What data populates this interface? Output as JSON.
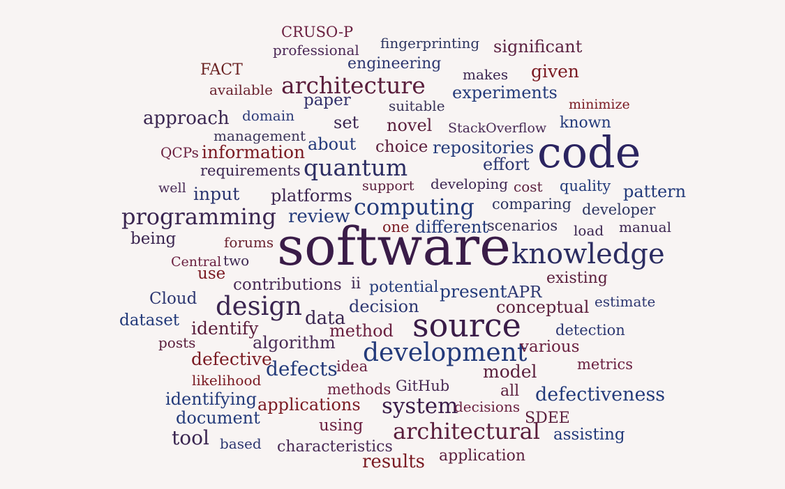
{
  "words": [
    {
      "text": "CRUSO-P",
      "color": "#6a2040"
    },
    {
      "text": "professional",
      "color": "#4b2755"
    },
    {
      "text": "fingerprinting",
      "color": "#2d3560"
    },
    {
      "text": "significant",
      "color": "#5a1f3f"
    },
    {
      "text": "FACT",
      "color": "#6a2222"
    },
    {
      "text": "engineering",
      "color": "#2c3670"
    },
    {
      "text": "makes",
      "color": "#3b2550"
    },
    {
      "text": "given",
      "color": "#7a1a22"
    },
    {
      "text": "available",
      "color": "#6b2330"
    },
    {
      "text": "architecture",
      "color": "#5a1e3c"
    },
    {
      "text": "experiments",
      "color": "#233a7a"
    },
    {
      "text": "paper",
      "color": "#31306a"
    },
    {
      "text": "suitable",
      "color": "#3a3358"
    },
    {
      "text": "minimize",
      "color": "#7a1a22"
    },
    {
      "text": "approach",
      "color": "#3a2550"
    },
    {
      "text": "domain",
      "color": "#2d3a78"
    },
    {
      "text": "set",
      "color": "#3a2550"
    },
    {
      "text": "novel",
      "color": "#5a1e3c"
    },
    {
      "text": "StackOverflow",
      "color": "#482a55"
    },
    {
      "text": "known",
      "color": "#233a7a"
    },
    {
      "text": "management",
      "color": "#3a3358"
    },
    {
      "text": "code",
      "color": "#2b2460"
    },
    {
      "text": "QCPs",
      "color": "#6a2040"
    },
    {
      "text": "information",
      "color": "#7a1a22"
    },
    {
      "text": "about",
      "color": "#233a7a"
    },
    {
      "text": "choice",
      "color": "#5a1e3c"
    },
    {
      "text": "repositories",
      "color": "#233a7a"
    },
    {
      "text": "effort",
      "color": "#2c3670"
    },
    {
      "text": "requirements",
      "color": "#3b2550"
    },
    {
      "text": "quantum",
      "color": "#2c2d62"
    },
    {
      "text": "well",
      "color": "#482a55"
    },
    {
      "text": "input",
      "color": "#2c3670"
    },
    {
      "text": "support",
      "color": "#5a1e3c"
    },
    {
      "text": "developing",
      "color": "#3b2550"
    },
    {
      "text": "cost",
      "color": "#5a1e3c"
    },
    {
      "text": "quality",
      "color": "#233a7a"
    },
    {
      "text": "pattern",
      "color": "#233a7a"
    },
    {
      "text": "platforms",
      "color": "#3b2550"
    },
    {
      "text": "computing",
      "color": "#233a7a"
    },
    {
      "text": "comparing",
      "color": "#2d3560"
    },
    {
      "text": "developer",
      "color": "#2d3560"
    },
    {
      "text": "programming",
      "color": "#3a2550"
    },
    {
      "text": "review",
      "color": "#233a7a"
    },
    {
      "text": "one",
      "color": "#7a1a22"
    },
    {
      "text": "different",
      "color": "#233a7a"
    },
    {
      "text": "scenarios",
      "color": "#3a3358"
    },
    {
      "text": "load",
      "color": "#3b2550"
    },
    {
      "text": "manual",
      "color": "#3b2550"
    },
    {
      "text": "being",
      "color": "#3b2550"
    },
    {
      "text": "forums",
      "color": "#6a2330"
    },
    {
      "text": "software",
      "color": "#3a1c48"
    },
    {
      "text": "knowledge",
      "color": "#2c2d62"
    },
    {
      "text": "Central",
      "color": "#6a2040"
    },
    {
      "text": "two",
      "color": "#3b2550"
    },
    {
      "text": "use",
      "color": "#7a1a22"
    },
    {
      "text": "existing",
      "color": "#5a1e3c"
    },
    {
      "text": "contributions",
      "color": "#482a55"
    },
    {
      "text": "ii",
      "color": "#3b2550"
    },
    {
      "text": "potential",
      "color": "#233a7a"
    },
    {
      "text": "present",
      "color": "#233a7a"
    },
    {
      "text": "APR",
      "color": "#2c3670"
    },
    {
      "text": "Cloud",
      "color": "#2c3670"
    },
    {
      "text": "design",
      "color": "#3b2550"
    },
    {
      "text": "decision",
      "color": "#2c3670"
    },
    {
      "text": "conceptual",
      "color": "#5a1e3c"
    },
    {
      "text": "estimate",
      "color": "#2c3670"
    },
    {
      "text": "dataset",
      "color": "#233a7a"
    },
    {
      "text": "identify",
      "color": "#5a1e3c"
    },
    {
      "text": "data",
      "color": "#3a2550"
    },
    {
      "text": "source",
      "color": "#3a1c48"
    },
    {
      "text": "method",
      "color": "#6a2040"
    },
    {
      "text": "detection",
      "color": "#2c3670"
    },
    {
      "text": "posts",
      "color": "#5a1e3c"
    },
    {
      "text": "algorithm",
      "color": "#482a55"
    },
    {
      "text": "development",
      "color": "#233a7a"
    },
    {
      "text": "various",
      "color": "#6a2040"
    },
    {
      "text": "defective",
      "color": "#7a1a22"
    },
    {
      "text": "defects",
      "color": "#233a7a"
    },
    {
      "text": "idea",
      "color": "#6a2040"
    },
    {
      "text": "model",
      "color": "#5a1e3c"
    },
    {
      "text": "metrics",
      "color": "#6a2040"
    },
    {
      "text": "likelihood",
      "color": "#7a1a22"
    },
    {
      "text": "methods",
      "color": "#6a2040"
    },
    {
      "text": "GitHub",
      "color": "#482a55"
    },
    {
      "text": "all",
      "color": "#5a1e3c"
    },
    {
      "text": "defectiveness",
      "color": "#233a7a"
    },
    {
      "text": "identifying",
      "color": "#233a7a"
    },
    {
      "text": "applications",
      "color": "#7a1a22"
    },
    {
      "text": "system",
      "color": "#3a1c48"
    },
    {
      "text": "decisions",
      "color": "#6a2040"
    },
    {
      "text": "document",
      "color": "#233a7a"
    },
    {
      "text": "SDEE",
      "color": "#5a1e3c"
    },
    {
      "text": "using",
      "color": "#6a2040"
    },
    {
      "text": "architectural",
      "color": "#5a1e3c"
    },
    {
      "text": "assisting",
      "color": "#233a7a"
    },
    {
      "text": "tool",
      "color": "#3a2550"
    },
    {
      "text": "based",
      "color": "#2c3670"
    },
    {
      "text": "characteristics",
      "color": "#482a55"
    },
    {
      "text": "results",
      "color": "#7a1a22"
    },
    {
      "text": "application",
      "color": "#5a1e3c"
    }
  ]
}
